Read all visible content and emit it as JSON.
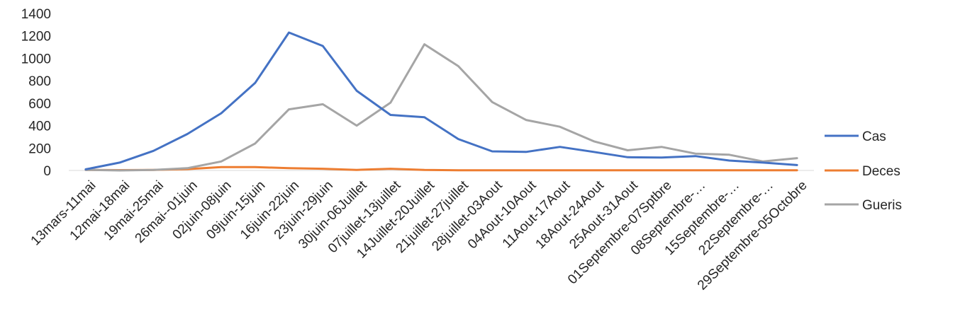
{
  "chart_data": {
    "type": "line",
    "title": "",
    "xlabel": "",
    "ylabel": "",
    "ylim": [
      0,
      1400
    ],
    "yticks": [
      0,
      200,
      400,
      600,
      800,
      1000,
      1200,
      1400
    ],
    "grid": false,
    "legend_position": "right",
    "categories": [
      "13mars-11mai",
      "12mai-18mai",
      "19mai-25mai",
      "26mai--01juin",
      "02juin-08juin",
      "09juin-15juin",
      "16juin-22juin",
      "23juin-29juin",
      "30juin-06Juillet",
      "07juillet-13juillet",
      "14Juillet-20Juillet",
      "21juillet-27juillet",
      "28juillet-03Aout",
      "04Aout-10Aout",
      "11Aout-17Aout",
      "18Aout-24Aout",
      "25Aout-31Aout",
      "01Septembre-07Sptbre",
      "08Septembre-…",
      "15Septembre-…",
      "22Septembre-…",
      "29Septembre-05Octobre"
    ],
    "series": [
      {
        "name": "Cas",
        "color": "#4472C4",
        "values": [
          10,
          70,
          175,
          325,
          510,
          780,
          1230,
          1110,
          710,
          495,
          475,
          280,
          170,
          165,
          210,
          165,
          118,
          115,
          128,
          88,
          70,
          48
        ]
      },
      {
        "name": "Deces",
        "color": "#ED7D31",
        "values": [
          5,
          3,
          5,
          12,
          30,
          30,
          20,
          15,
          5,
          15,
          5,
          2,
          2,
          2,
          2,
          2,
          2,
          2,
          2,
          2,
          2,
          2
        ]
      },
      {
        "name": "Gueris",
        "color": "#A5A5A5",
        "values": [
          5,
          0,
          5,
          20,
          80,
          240,
          545,
          590,
          400,
          605,
          1125,
          930,
          610,
          450,
          390,
          260,
          180,
          210,
          150,
          140,
          80,
          110
        ]
      }
    ]
  }
}
